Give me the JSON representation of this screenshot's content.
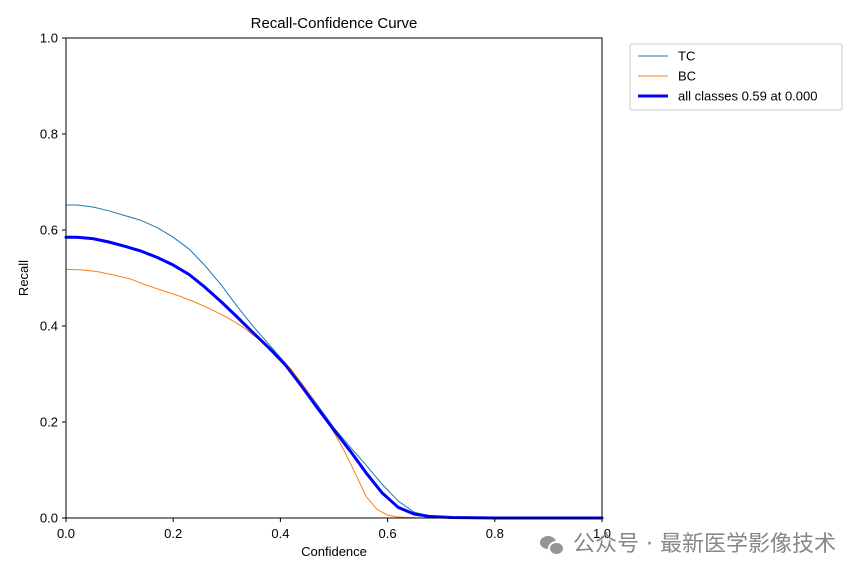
{
  "chart_data": {
    "type": "line",
    "title": "Recall-Confidence Curve",
    "xlabel": "Confidence",
    "ylabel": "Recall",
    "xlim": [
      0.0,
      1.0
    ],
    "ylim": [
      0.0,
      1.0
    ],
    "xticks": [
      "0.0",
      "0.2",
      "0.4",
      "0.6",
      "0.8",
      "1.0"
    ],
    "yticks": [
      "0.0",
      "0.2",
      "0.4",
      "0.6",
      "0.8",
      "1.0"
    ],
    "grid": false,
    "legend": "top-right outside",
    "series": [
      {
        "name": "TC",
        "color": "#1f77b4",
        "x": [
          0.0,
          0.02,
          0.05,
          0.08,
          0.11,
          0.14,
          0.17,
          0.2,
          0.23,
          0.26,
          0.29,
          0.32,
          0.35,
          0.38,
          0.41,
          0.44,
          0.47,
          0.5,
          0.53,
          0.56,
          0.59,
          0.62,
          0.65,
          0.68,
          0.72,
          0.8,
          0.9,
          1.0
        ],
        "y": [
          0.652,
          0.652,
          0.648,
          0.64,
          0.63,
          0.62,
          0.605,
          0.585,
          0.56,
          0.525,
          0.485,
          0.44,
          0.398,
          0.36,
          0.322,
          0.28,
          0.234,
          0.188,
          0.148,
          0.11,
          0.07,
          0.035,
          0.012,
          0.004,
          0.001,
          0.0,
          0.0,
          0.0
        ]
      },
      {
        "name": "BC",
        "color": "#ff7f0e",
        "x": [
          0.0,
          0.03,
          0.06,
          0.09,
          0.12,
          0.15,
          0.18,
          0.21,
          0.24,
          0.27,
          0.3,
          0.33,
          0.36,
          0.39,
          0.42,
          0.45,
          0.48,
          0.5,
          0.52,
          0.54,
          0.56,
          0.58,
          0.6,
          0.62,
          0.64,
          0.66,
          0.7,
          0.8,
          1.0
        ],
        "y": [
          0.518,
          0.517,
          0.513,
          0.506,
          0.498,
          0.485,
          0.474,
          0.463,
          0.45,
          0.435,
          0.418,
          0.398,
          0.372,
          0.345,
          0.31,
          0.265,
          0.215,
          0.178,
          0.138,
          0.092,
          0.045,
          0.018,
          0.006,
          0.002,
          0.001,
          0.0,
          0.0,
          0.0,
          0.0
        ]
      },
      {
        "name": "all classes 0.59 at 0.000",
        "color": "#0000ff",
        "x": [
          0.0,
          0.02,
          0.05,
          0.08,
          0.11,
          0.14,
          0.17,
          0.2,
          0.23,
          0.26,
          0.29,
          0.32,
          0.35,
          0.38,
          0.41,
          0.44,
          0.47,
          0.5,
          0.53,
          0.56,
          0.59,
          0.62,
          0.65,
          0.68,
          0.72,
          0.8,
          0.9,
          1.0
        ],
        "y": [
          0.585,
          0.585,
          0.582,
          0.575,
          0.566,
          0.556,
          0.543,
          0.527,
          0.507,
          0.48,
          0.45,
          0.418,
          0.385,
          0.353,
          0.318,
          0.274,
          0.228,
          0.183,
          0.14,
          0.094,
          0.052,
          0.022,
          0.008,
          0.003,
          0.001,
          0.0,
          0.0,
          0.0
        ]
      }
    ]
  },
  "watermark": {
    "text": "公众号 · 最新医学影像技术",
    "icon": "wechat-icon"
  }
}
